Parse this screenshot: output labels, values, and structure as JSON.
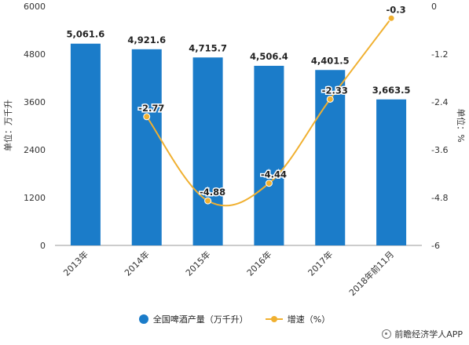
{
  "chart_data": {
    "type": "bar",
    "categories": [
      "2013年",
      "2014年",
      "2015年",
      "2016年",
      "2017年",
      "2018年前11月"
    ],
    "series": [
      {
        "name": "全国啤酒产量（万千升）",
        "type": "bar",
        "axis": "left",
        "values": [
          5061.6,
          4921.6,
          4715.7,
          4506.4,
          4401.5,
          3663.5
        ],
        "labels": [
          "5,061.6",
          "4,921.6",
          "4,715.7",
          "4,506.4",
          "4,401.5",
          "3,663.5"
        ],
        "color": "#1B7CC9"
      },
      {
        "name": "增速（%）",
        "type": "line",
        "axis": "right",
        "values": [
          null,
          -2.77,
          -4.88,
          -4.44,
          -2.33,
          -0.3
        ],
        "labels": [
          "",
          "-2.77",
          "-4.88",
          "-4.44",
          "-2.33",
          "-0.3"
        ],
        "color": "#F0B030"
      }
    ],
    "ylabel": "单位：万千升",
    "y2label": "单位：%",
    "ylim": [
      0,
      6000
    ],
    "y2lim": [
      -6,
      0
    ],
    "yticks": [
      "0",
      "1200",
      "2400",
      "3600",
      "4800",
      "6000"
    ],
    "y2ticks": [
      "-6",
      "-4.8",
      "-3.6",
      "-2.4",
      "-1.2",
      "0"
    ],
    "legend_position": "bottom",
    "grid": false
  },
  "legend": {
    "bar_label": "全国啤酒产量（万千升）",
    "line_label": "增速（%）"
  },
  "source": "前瞻经济学人APP"
}
